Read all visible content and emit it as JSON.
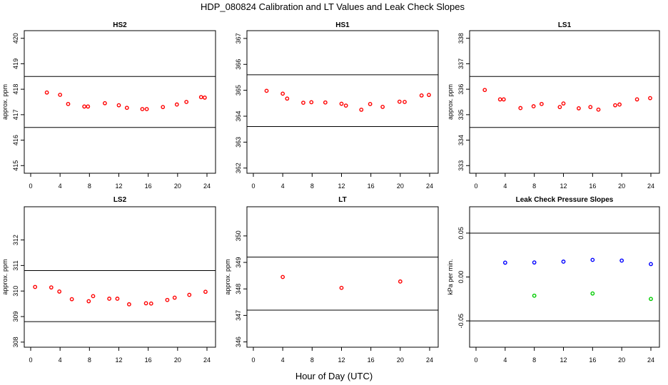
{
  "figure": {
    "title": "HDP_080824  Calibration and LT Values and Leak Check Slopes",
    "xlabel": "Hour of Day (UTC)"
  },
  "colors": {
    "red": "#ff0000",
    "blue": "#0000ff",
    "green": "#00cc00",
    "black": "#000000"
  },
  "chart_data": [
    {
      "type": "scatter",
      "title": "HS2",
      "ylabel": "approx. ppm",
      "xlim": [
        0,
        24
      ],
      "ylim": [
        414.7,
        420.3
      ],
      "xticks": [
        0,
        4,
        8,
        12,
        16,
        20,
        24
      ],
      "yticks": [
        415,
        416,
        417,
        418,
        419,
        420
      ],
      "hlines": [
        416.5,
        418.5
      ],
      "series": [
        {
          "name": "HS2",
          "color": "red",
          "x": [
            2.2,
            4.0,
            5.1,
            7.3,
            7.8,
            10.1,
            12.0,
            13.1,
            15.2,
            15.8,
            18.0,
            19.9,
            21.2,
            23.2,
            23.7
          ],
          "y": [
            417.87,
            417.78,
            417.42,
            417.32,
            417.32,
            417.45,
            417.37,
            417.27,
            417.22,
            417.22,
            417.3,
            417.4,
            417.5,
            417.69,
            417.67
          ]
        }
      ]
    },
    {
      "type": "scatter",
      "title": "HS1",
      "ylabel": "",
      "xlim": [
        0,
        24
      ],
      "ylim": [
        361.8,
        367.3
      ],
      "xticks": [
        0,
        4,
        8,
        12,
        16,
        20,
        24
      ],
      "yticks": [
        362,
        363,
        364,
        365,
        366,
        367
      ],
      "hlines": [
        363.6,
        365.6
      ],
      "series": [
        {
          "name": "HS1",
          "color": "red",
          "x": [
            1.8,
            4.0,
            4.6,
            6.8,
            7.9,
            9.8,
            12.0,
            12.6,
            14.7,
            15.9,
            17.6,
            19.9,
            20.6,
            22.9,
            23.9
          ],
          "y": [
            364.98,
            364.87,
            364.68,
            364.52,
            364.54,
            364.53,
            364.48,
            364.41,
            364.25,
            364.47,
            364.36,
            364.56,
            364.55,
            364.8,
            364.82
          ]
        }
      ]
    },
    {
      "type": "scatter",
      "title": "LS1",
      "ylabel": "approx. ppm",
      "xlim": [
        0,
        24
      ],
      "ylim": [
        332.7,
        338.3
      ],
      "xticks": [
        0,
        4,
        8,
        12,
        16,
        20,
        24
      ],
      "yticks": [
        333,
        334,
        335,
        336,
        337,
        338
      ],
      "hlines": [
        334.5,
        336.5
      ],
      "series": [
        {
          "name": "LS1",
          "color": "red",
          "x": [
            1.2,
            3.3,
            3.8,
            6.1,
            7.9,
            9.0,
            11.5,
            12.0,
            14.1,
            15.7,
            16.8,
            19.1,
            19.7,
            22.1,
            23.9
          ],
          "y": [
            335.97,
            335.6,
            335.6,
            335.26,
            335.33,
            335.42,
            335.3,
            335.44,
            335.25,
            335.3,
            335.2,
            335.37,
            335.4,
            335.6,
            335.65
          ]
        }
      ]
    },
    {
      "type": "scatter",
      "title": "LS2",
      "ylabel": "approx. ppm",
      "xlim": [
        0,
        24
      ],
      "ylim": [
        307.8,
        313.3
      ],
      "xticks": [
        0,
        4,
        8,
        12,
        16,
        20,
        24
      ],
      "yticks": [
        308,
        309,
        310,
        311,
        312
      ],
      "hlines": [
        308.8,
        310.8
      ],
      "series": [
        {
          "name": "LS2",
          "color": "red",
          "x": [
            0.6,
            2.8,
            3.9,
            5.6,
            7.9,
            8.5,
            10.7,
            11.8,
            13.4,
            15.7,
            16.4,
            18.6,
            19.6,
            21.6,
            23.8
          ],
          "y": [
            310.16,
            310.14,
            309.98,
            309.68,
            309.6,
            309.8,
            309.7,
            309.7,
            309.48,
            309.52,
            309.51,
            309.65,
            309.74,
            309.85,
            309.97
          ]
        }
      ]
    },
    {
      "type": "scatter",
      "title": "LT",
      "ylabel": "approx. ppm",
      "xlim": [
        0,
        24
      ],
      "ylim": [
        345.8,
        351.1
      ],
      "xticks": [
        0,
        4,
        8,
        12,
        16,
        20,
        24
      ],
      "yticks": [
        346,
        347,
        348,
        349,
        350
      ],
      "hlines": [
        347.2,
        349.2
      ],
      "series": [
        {
          "name": "LT",
          "color": "red",
          "x": [
            4.0,
            12.0,
            20.0
          ],
          "y": [
            348.45,
            348.04,
            348.28
          ]
        }
      ]
    },
    {
      "type": "scatter",
      "title": "Leak Check Pressure Slopes",
      "ylabel": "kPa per min.",
      "xlim": [
        0,
        24
      ],
      "ylim": [
        -0.08,
        0.08
      ],
      "xticks": [
        0,
        4,
        8,
        12,
        16,
        20,
        24
      ],
      "yticks": [
        -0.05,
        0.0,
        0.05
      ],
      "ytick_labels": [
        "-0.05",
        "0.00",
        "0.05"
      ],
      "hlines": [
        0.05,
        -0.05
      ],
      "series": [
        {
          "name": "blue",
          "color": "blue",
          "x": [
            4.0,
            8.0,
            12.0,
            16.0,
            20.0,
            24.0
          ],
          "y": [
            0.0163,
            0.0165,
            0.0175,
            0.0195,
            0.0187,
            0.0147
          ]
        },
        {
          "name": "green",
          "color": "green",
          "x": [
            8.0,
            16.0,
            24.0
          ],
          "y": [
            -0.0213,
            -0.0188,
            -0.025
          ]
        }
      ]
    }
  ]
}
